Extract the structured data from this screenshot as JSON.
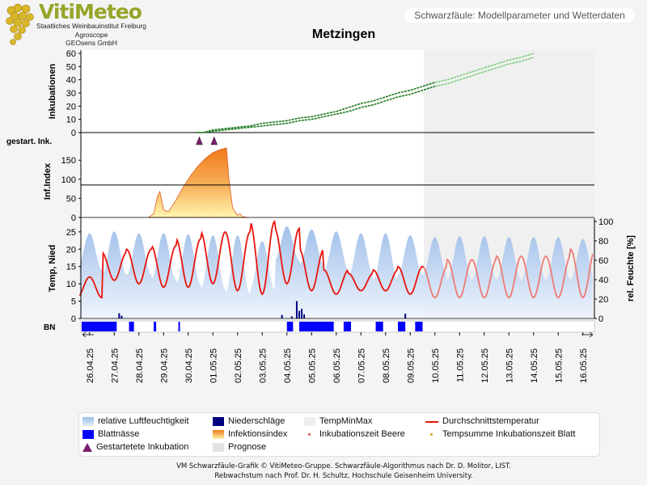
{
  "header": {
    "logo_text": "VitiMeteo",
    "org_lines": [
      "Staatliches Weinbauinstitut Freiburg",
      "Agroscope",
      "GEOsens GmbH"
    ],
    "panel_title": "Schwarzfäule: Modellparameter und Wetterdaten"
  },
  "title": "Metzingen",
  "chart_data": {
    "type": "line",
    "x_dates": [
      "26.04.25",
      "27.04.25",
      "28.04.25",
      "29.04.25",
      "30.04.25",
      "01.05.25",
      "02.05.25",
      "03.05.25",
      "04.05.25",
      "05.05.25",
      "06.05.25",
      "07.05.25",
      "08.05.25",
      "09.05.25",
      "10.05.25",
      "11.05.25",
      "12.05.25",
      "13.05.25",
      "14.05.25",
      "15.05.25",
      "16.05.25"
    ],
    "prognose_from": "10.05.25",
    "panels": [
      {
        "name": "incubations",
        "ylabel": "Inkubationen",
        "ylim": [
          0,
          60
        ],
        "yticks": [
          0,
          10,
          20,
          30,
          40,
          50,
          60
        ],
        "threshold": 0,
        "series": [
          {
            "name": "Inkubationszeit Beere",
            "color": "#2e9a2e",
            "points": [
              [
                4.3,
                0
              ],
              [
                4.6,
                0
              ],
              [
                5.0,
                2
              ],
              [
                5.5,
                3
              ],
              [
                6.0,
                4
              ],
              [
                6.5,
                5
              ],
              [
                7.0,
                7
              ],
              [
                7.5,
                8
              ],
              [
                8.0,
                9
              ],
              [
                8.5,
                11
              ],
              [
                9.0,
                12
              ],
              [
                9.5,
                14
              ],
              [
                10.0,
                16
              ],
              [
                10.5,
                19
              ],
              [
                11.0,
                22
              ],
              [
                11.5,
                24
              ],
              [
                12.0,
                27
              ],
              [
                12.5,
                30
              ],
              [
                13.0,
                32
              ],
              [
                13.5,
                35
              ],
              [
                14.0,
                38
              ],
              [
                14.5,
                40
              ],
              [
                15.0,
                43
              ],
              [
                15.5,
                46
              ],
              [
                16.0,
                49
              ],
              [
                16.5,
                52
              ],
              [
                17.0,
                55
              ],
              [
                17.5,
                57
              ],
              [
                18.0,
                60
              ]
            ]
          },
          {
            "name": "Tempsumme Inkubationszeit Blatt",
            "color": "#2e9a2e",
            "points": [
              [
                4.3,
                0
              ],
              [
                4.6,
                0
              ],
              [
                5.0,
                1
              ],
              [
                5.5,
                2
              ],
              [
                6.0,
                3
              ],
              [
                6.5,
                4
              ],
              [
                7.0,
                5
              ],
              [
                7.5,
                6
              ],
              [
                8.0,
                7
              ],
              [
                8.5,
                9
              ],
              [
                9.0,
                10
              ],
              [
                9.5,
                12
              ],
              [
                10.0,
                14
              ],
              [
                10.5,
                16
              ],
              [
                11.0,
                19
              ],
              [
                11.5,
                21
              ],
              [
                12.0,
                24
              ],
              [
                12.5,
                27
              ],
              [
                13.0,
                29
              ],
              [
                13.5,
                32
              ],
              [
                14.0,
                35
              ],
              [
                14.5,
                37
              ],
              [
                15.0,
                40
              ],
              [
                15.5,
                43
              ],
              [
                16.0,
                46
              ],
              [
                16.5,
                49
              ],
              [
                17.0,
                52
              ],
              [
                17.5,
                54
              ],
              [
                18.0,
                57
              ]
            ]
          }
        ]
      },
      {
        "name": "started-incubations",
        "ylabel": "gestart. Ink.",
        "markers": [
          4.45,
          5.05
        ]
      },
      {
        "name": "infection-index",
        "ylabel": "Inf.Index",
        "ylim": [
          0,
          180
        ],
        "yticks": [
          0,
          50,
          100,
          150
        ],
        "threshold": 85,
        "series": [
          {
            "name": "Infektionsindex",
            "points": [
              [
                2.4,
                0
              ],
              [
                2.6,
                10
              ],
              [
                2.75,
                55
              ],
              [
                2.85,
                68
              ],
              [
                3.0,
                20
              ],
              [
                3.2,
                15
              ],
              [
                3.5,
                45
              ],
              [
                3.8,
                80
              ],
              [
                4.1,
                110
              ],
              [
                4.4,
                135
              ],
              [
                4.7,
                155
              ],
              [
                5.0,
                170
              ],
              [
                5.3,
                178
              ],
              [
                5.55,
                182
              ],
              [
                5.65,
                100
              ],
              [
                5.8,
                25
              ],
              [
                6.0,
                5
              ],
              [
                6.1,
                10
              ],
              [
                6.2,
                2
              ],
              [
                6.4,
                0
              ]
            ]
          }
        ]
      },
      {
        "name": "weather",
        "ylabel": "Temp, Nied",
        "ylabel_right": "rel. Feuchte [%]",
        "ylim": [
          0,
          28
        ],
        "yticks": [
          0,
          5,
          10,
          15,
          20,
          25
        ],
        "ylim_right": [
          0,
          100
        ],
        "yticks_right": [
          0,
          20,
          40,
          60,
          80,
          100
        ],
        "avg_temp_daily": [
          [
            12,
            6
          ],
          [
            11,
            19
          ],
          [
            10,
            20
          ],
          [
            9,
            21
          ],
          [
            9,
            23
          ],
          [
            10,
            25
          ],
          [
            8,
            25
          ],
          [
            7,
            28
          ],
          [
            10,
            26
          ],
          [
            8,
            20
          ],
          [
            7,
            14
          ],
          [
            8,
            13
          ],
          [
            8,
            14
          ],
          [
            7,
            15
          ],
          [
            6,
            15
          ],
          [
            6,
            17
          ],
          [
            6,
            17
          ],
          [
            6,
            18
          ],
          [
            6,
            18
          ],
          [
            6,
            18
          ],
          [
            6,
            20
          ]
        ],
        "humidity_daily": [
          [
            50,
            88
          ],
          [
            45,
            90
          ],
          [
            45,
            88
          ],
          [
            40,
            88
          ],
          [
            35,
            87
          ],
          [
            30,
            86
          ],
          [
            25,
            86
          ],
          [
            30,
            80
          ],
          [
            60,
            95
          ],
          [
            55,
            92
          ],
          [
            50,
            90
          ],
          [
            45,
            88
          ],
          [
            40,
            88
          ],
          [
            45,
            86
          ],
          [
            45,
            84
          ],
          [
            40,
            85
          ],
          [
            40,
            85
          ],
          [
            40,
            84
          ],
          [
            40,
            84
          ],
          [
            40,
            84
          ],
          [
            40,
            82
          ]
        ],
        "precipitation_mm": [
          [
            1.2,
            1.5
          ],
          [
            1.3,
            0.8
          ],
          [
            7.8,
            1.0
          ],
          [
            8.2,
            0.6
          ],
          [
            8.4,
            5.0
          ],
          [
            8.5,
            2.2
          ],
          [
            8.6,
            2.8
          ],
          [
            8.7,
            1.2
          ],
          [
            12.8,
            1.4
          ]
        ]
      },
      {
        "name": "leaf-wetness",
        "ylabel": "BN",
        "segments": [
          [
            0.0,
            1.6
          ],
          [
            2.1,
            2.3
          ],
          [
            3.1,
            3.2
          ],
          [
            4.1,
            4.15
          ],
          [
            8.5,
            8.75
          ],
          [
            9.0,
            10.4
          ],
          [
            10.8,
            11.1
          ],
          [
            12.1,
            12.4
          ],
          [
            13.0,
            13.3
          ],
          [
            13.7,
            14.0
          ]
        ]
      }
    ],
    "legend": [
      {
        "label": "relative Luftfeuchtigkeit",
        "color": "#b7cfee"
      },
      {
        "label": "Blattnässe",
        "color": "#0000ff"
      },
      {
        "label": "Gestartetete Inkubation",
        "color": "#7a1e6e"
      },
      {
        "label": "Niederschläge",
        "color": "#000080"
      },
      {
        "label": "Infektionsindex",
        "color": "#f07a1a"
      },
      {
        "label": "Prognose",
        "color": "#e3e3e3"
      },
      {
        "label": "TempMinMax",
        "color": "#eeeeee"
      },
      {
        "label": "Inkubationszeit Beere",
        "color": "#d9534f"
      },
      {
        "label": "Durchschnittstemperatur",
        "color": "#e8140c"
      },
      {
        "label": "Tempsumme Inkubationszeit Blatt",
        "color": "#e8a020"
      }
    ]
  },
  "footer": {
    "line1": "VM Schwarzfäule-Grafik © VitiMeteo-Gruppe. Schwarzfäule-Algorithmus nach Dr. D. Molitor, LIST.",
    "line2": "Rebwachstum nach Prof. Dr. H. Schultz, Hochschule Geisenheim University."
  }
}
